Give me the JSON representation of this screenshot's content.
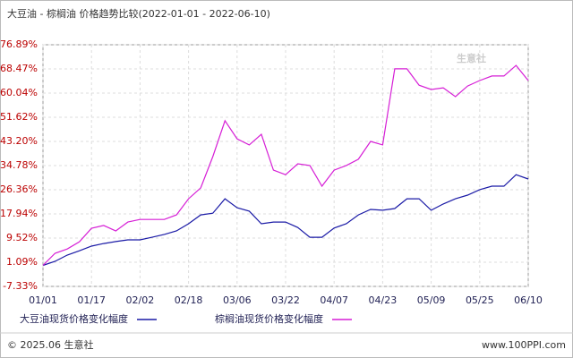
{
  "chart_data": {
    "type": "line",
    "title": "大豆油 - 棕榈油 价格趋势比较(2022-01-01 - 2022-06-10)",
    "watermark": "生意社",
    "footer_left": "© 2025.06 生意社",
    "footer_right": "www.100PPI.com",
    "x": [
      "01/01",
      "01/05",
      "01/09",
      "01/13",
      "01/17",
      "01/21",
      "01/25",
      "01/29",
      "02/02",
      "02/06",
      "02/10",
      "02/14",
      "02/18",
      "02/22",
      "02/26",
      "03/02",
      "03/06",
      "03/10",
      "03/14",
      "03/18",
      "03/22",
      "03/26",
      "03/30",
      "04/03",
      "04/07",
      "04/11",
      "04/15",
      "04/19",
      "04/23",
      "04/27",
      "05/01",
      "05/05",
      "05/09",
      "05/13",
      "05/17",
      "05/21",
      "05/25",
      "05/29",
      "06/02",
      "06/06",
      "06/10"
    ],
    "xlim": [
      "01/01",
      "06/10"
    ],
    "xticks": [
      "01/01",
      "01/17",
      "02/02",
      "02/18",
      "03/06",
      "03/22",
      "04/07",
      "04/23",
      "05/09",
      "05/25",
      "06/10"
    ],
    "ylim": [
      -7.33,
      76.89
    ],
    "yticks": [
      {
        "value": -7.33,
        "label": "-7.33%"
      },
      {
        "value": 1.09,
        "label": "1.09%"
      },
      {
        "value": 9.52,
        "label": "9.52%"
      },
      {
        "value": 17.94,
        "label": "17.94%"
      },
      {
        "value": 26.36,
        "label": "26.36%"
      },
      {
        "value": 34.78,
        "label": "34.78%"
      },
      {
        "value": 43.2,
        "label": "43.20%"
      },
      {
        "value": 51.62,
        "label": "51.62%"
      },
      {
        "value": 60.04,
        "label": "60.04%"
      },
      {
        "value": 68.47,
        "label": "68.47%"
      },
      {
        "value": 76.89,
        "label": "76.89%"
      }
    ],
    "grid": true,
    "series": [
      {
        "name": "大豆油现货价格变化幅度",
        "color": "#1a1aa6",
        "values": [
          0,
          1.4,
          3.6,
          5.1,
          6.7,
          7.6,
          8.3,
          8.9,
          8.9,
          9.8,
          10.8,
          12,
          14.5,
          17.6,
          18.2,
          23.2,
          20.1,
          18.9,
          14.5,
          15.1,
          15.1,
          13.2,
          9.8,
          9.8,
          13,
          14.5,
          17.6,
          19.5,
          19.2,
          19.8,
          23.2,
          23.2,
          19.2,
          21.4,
          23.2,
          24.5,
          26.4,
          27.6,
          27.6,
          31.6,
          30.1
        ]
      },
      {
        "name": "棕榈油现货价格变化幅度",
        "color": "#d61fd6",
        "values": [
          0,
          4.2,
          5.7,
          8.2,
          12.9,
          13.9,
          12,
          15.1,
          16,
          16,
          16,
          17.6,
          23.2,
          27,
          37.9,
          50.4,
          44.1,
          42,
          45.7,
          33.2,
          31.6,
          35.4,
          34.8,
          27.6,
          33.2,
          34.8,
          37,
          43.2,
          42,
          68.5,
          68.5,
          62.8,
          61.3,
          61.9,
          58.8,
          62.5,
          64.4,
          66,
          66,
          69.7,
          64.4
        ]
      }
    ]
  }
}
